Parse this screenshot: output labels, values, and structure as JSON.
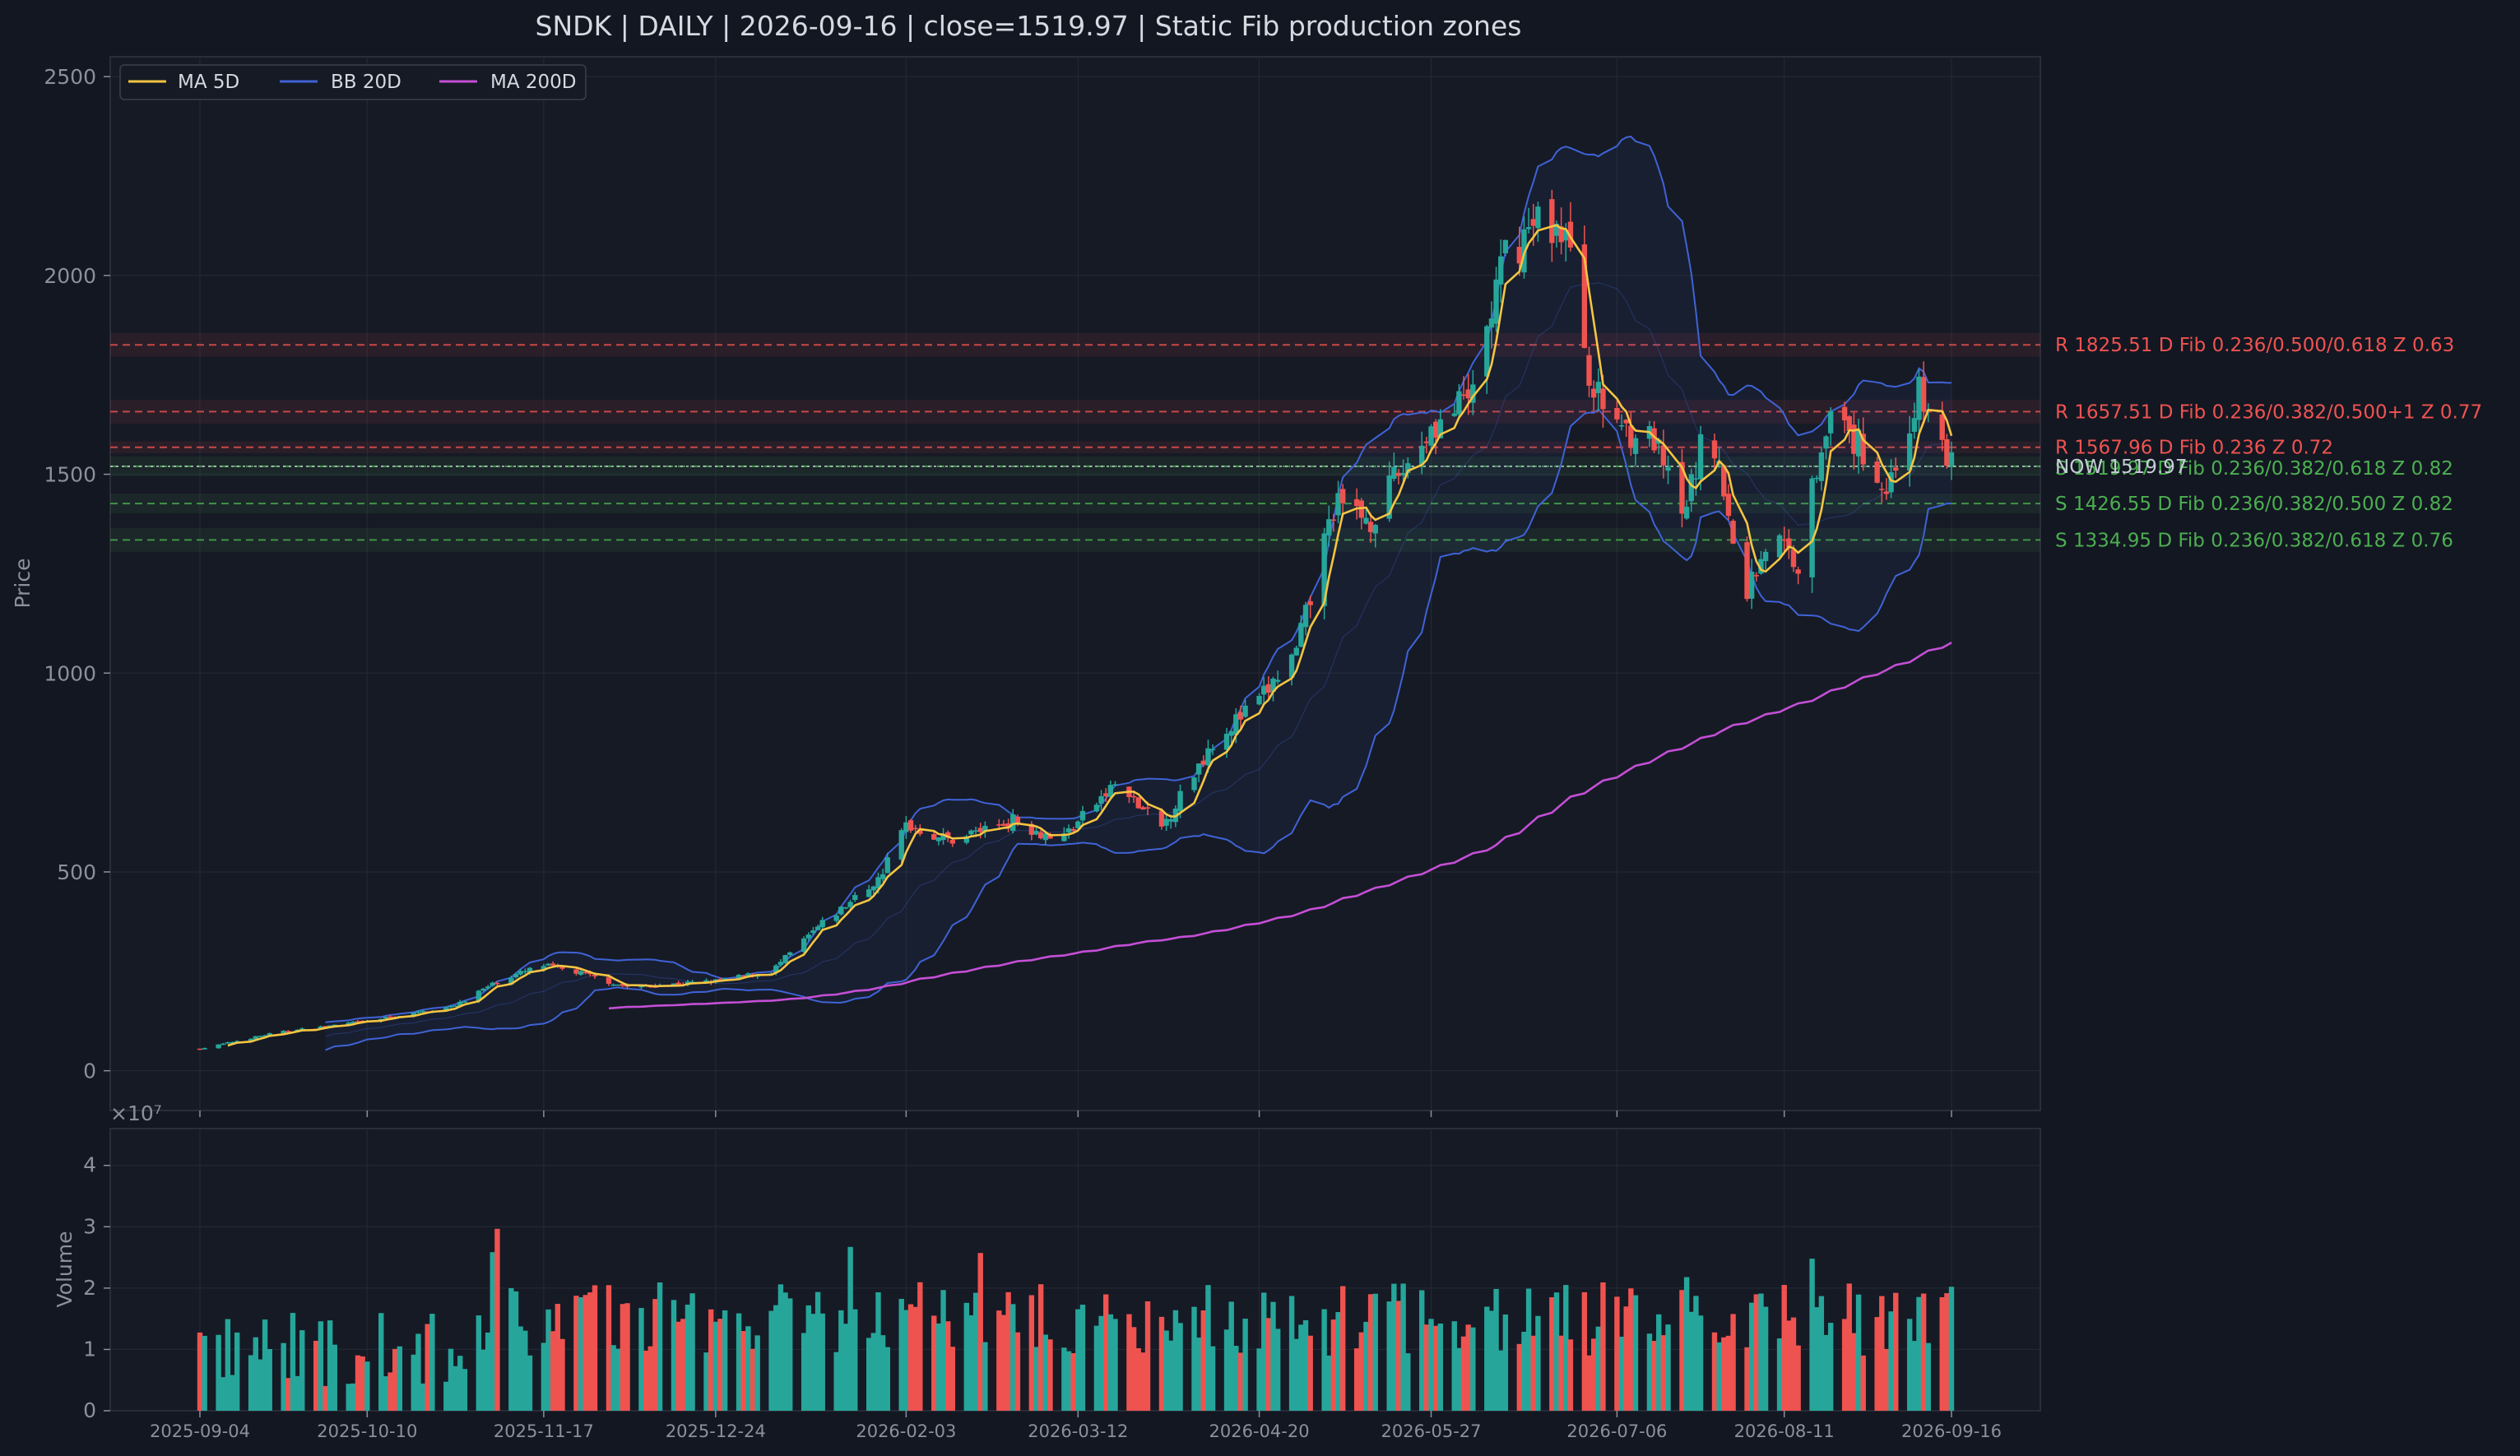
{
  "chart_data": {
    "type": "line",
    "title": "SNDK  |  DAILY  |  2026-09-16  |  close=1519.97  |  Static Fib production zones",
    "price_axis": {
      "ylabel": "Price",
      "ylim": [
        -100,
        2550
      ],
      "ticks": [
        0,
        500,
        1000,
        1500,
        2000,
        2500
      ]
    },
    "volume_axis": {
      "ylabel": "Volume",
      "exponent_label": "×10⁷",
      "ylim": [
        0,
        4.6
      ],
      "ticks": [
        0,
        1,
        2,
        3,
        4
      ],
      "tick_labels": [
        "0",
        "1",
        "2",
        "3",
        "4"
      ]
    },
    "x_ticks": [
      "2025-09-04",
      "2025-10-10",
      "2025-11-17",
      "2025-12-24",
      "2026-02-03",
      "2026-03-12",
      "2026-04-20",
      "2026-05-27",
      "2026-07-06",
      "2026-08-11",
      "2026-09-16"
    ],
    "legend": {
      "placement": "top-left",
      "entries": [
        "MA 5D",
        "BB 20D",
        "MA 200D"
      ]
    },
    "grid": true,
    "colors": {
      "up": "#26a69a",
      "down": "#ef5350",
      "ma5": "#f5c542",
      "bb": "#3f63d6",
      "ma200": "#c54fd6",
      "resistance": "#ef5350",
      "support": "#4caf50",
      "now": "#c6ccd6",
      "background": "#131722"
    },
    "price_anchors": [
      [
        "2025-09-04",
        55
      ],
      [
        "2025-09-20",
        95
      ],
      [
        "2025-10-10",
        125
      ],
      [
        "2025-10-28",
        160
      ],
      [
        "2025-11-08",
        230
      ],
      [
        "2025-11-17",
        265
      ],
      [
        "2025-11-25",
        245
      ],
      [
        "2025-12-05",
        210
      ],
      [
        "2025-12-24",
        225
      ],
      [
        "2026-01-05",
        250
      ],
      [
        "2026-01-15",
        360
      ],
      [
        "2026-01-28",
        480
      ],
      [
        "2026-02-03",
        620
      ],
      [
        "2026-02-12",
        580
      ],
      [
        "2026-02-26",
        630
      ],
      [
        "2026-03-08",
        580
      ],
      [
        "2026-03-20",
        720
      ],
      [
        "2026-03-30",
        610
      ],
      [
        "2026-04-10",
        830
      ],
      [
        "2026-04-20",
        930
      ],
      [
        "2026-04-28",
        1050
      ],
      [
        "2026-05-06",
        1420
      ],
      [
        "2026-05-14",
        1390
      ],
      [
        "2026-05-27",
        1620
      ],
      [
        "2026-06-04",
        1680
      ],
      [
        "2026-06-12",
        2050
      ],
      [
        "2026-06-20",
        2150
      ],
      [
        "2026-06-25",
        2100
      ],
      [
        "2026-07-01",
        1700
      ],
      [
        "2026-07-08",
        1620
      ],
      [
        "2026-07-14",
        1580
      ],
      [
        "2026-07-20",
        1380
      ],
      [
        "2026-07-26",
        1650
      ],
      [
        "2026-08-02",
        1180
      ],
      [
        "2026-08-08",
        1350
      ],
      [
        "2026-08-14",
        1280
      ],
      [
        "2026-08-20",
        1640
      ],
      [
        "2026-08-28",
        1560
      ],
      [
        "2026-09-02",
        1460
      ],
      [
        "2026-09-09",
        1700
      ],
      [
        "2026-09-16",
        1520
      ]
    ],
    "ma200_start": "2025-11-30",
    "zones": [
      {
        "type": "R",
        "price": 1825.51,
        "label": "R 1825.51  D  Fib 0.236/0.500/0.618  Z 0.63",
        "width": 60
      },
      {
        "type": "R",
        "price": 1657.51,
        "label": "R 1657.51  D  Fib 0.236/0.382/0.500+1  Z 0.77",
        "width": 60
      },
      {
        "type": "R",
        "price": 1567.96,
        "label": "R 1567.96  D  Fib 0.236  Z 0.72",
        "width": 30
      },
      {
        "type": "S",
        "price": 1519.97,
        "label": "S 1519.97  D  Fib 0.236/0.382/0.618  Z 0.82",
        "width": 50
      },
      {
        "type": "S",
        "price": 1426.55,
        "label": "S 1426.55  D  Fib 0.236/0.382/0.500  Z 0.82",
        "width": 50
      },
      {
        "type": "S",
        "price": 1334.95,
        "label": "S 1334.95  D  Fib 0.236/0.382/0.618  Z 0.76",
        "width": 60
      }
    ],
    "now_line": {
      "price": 1519.97,
      "label": "NOW 1519.97"
    }
  }
}
